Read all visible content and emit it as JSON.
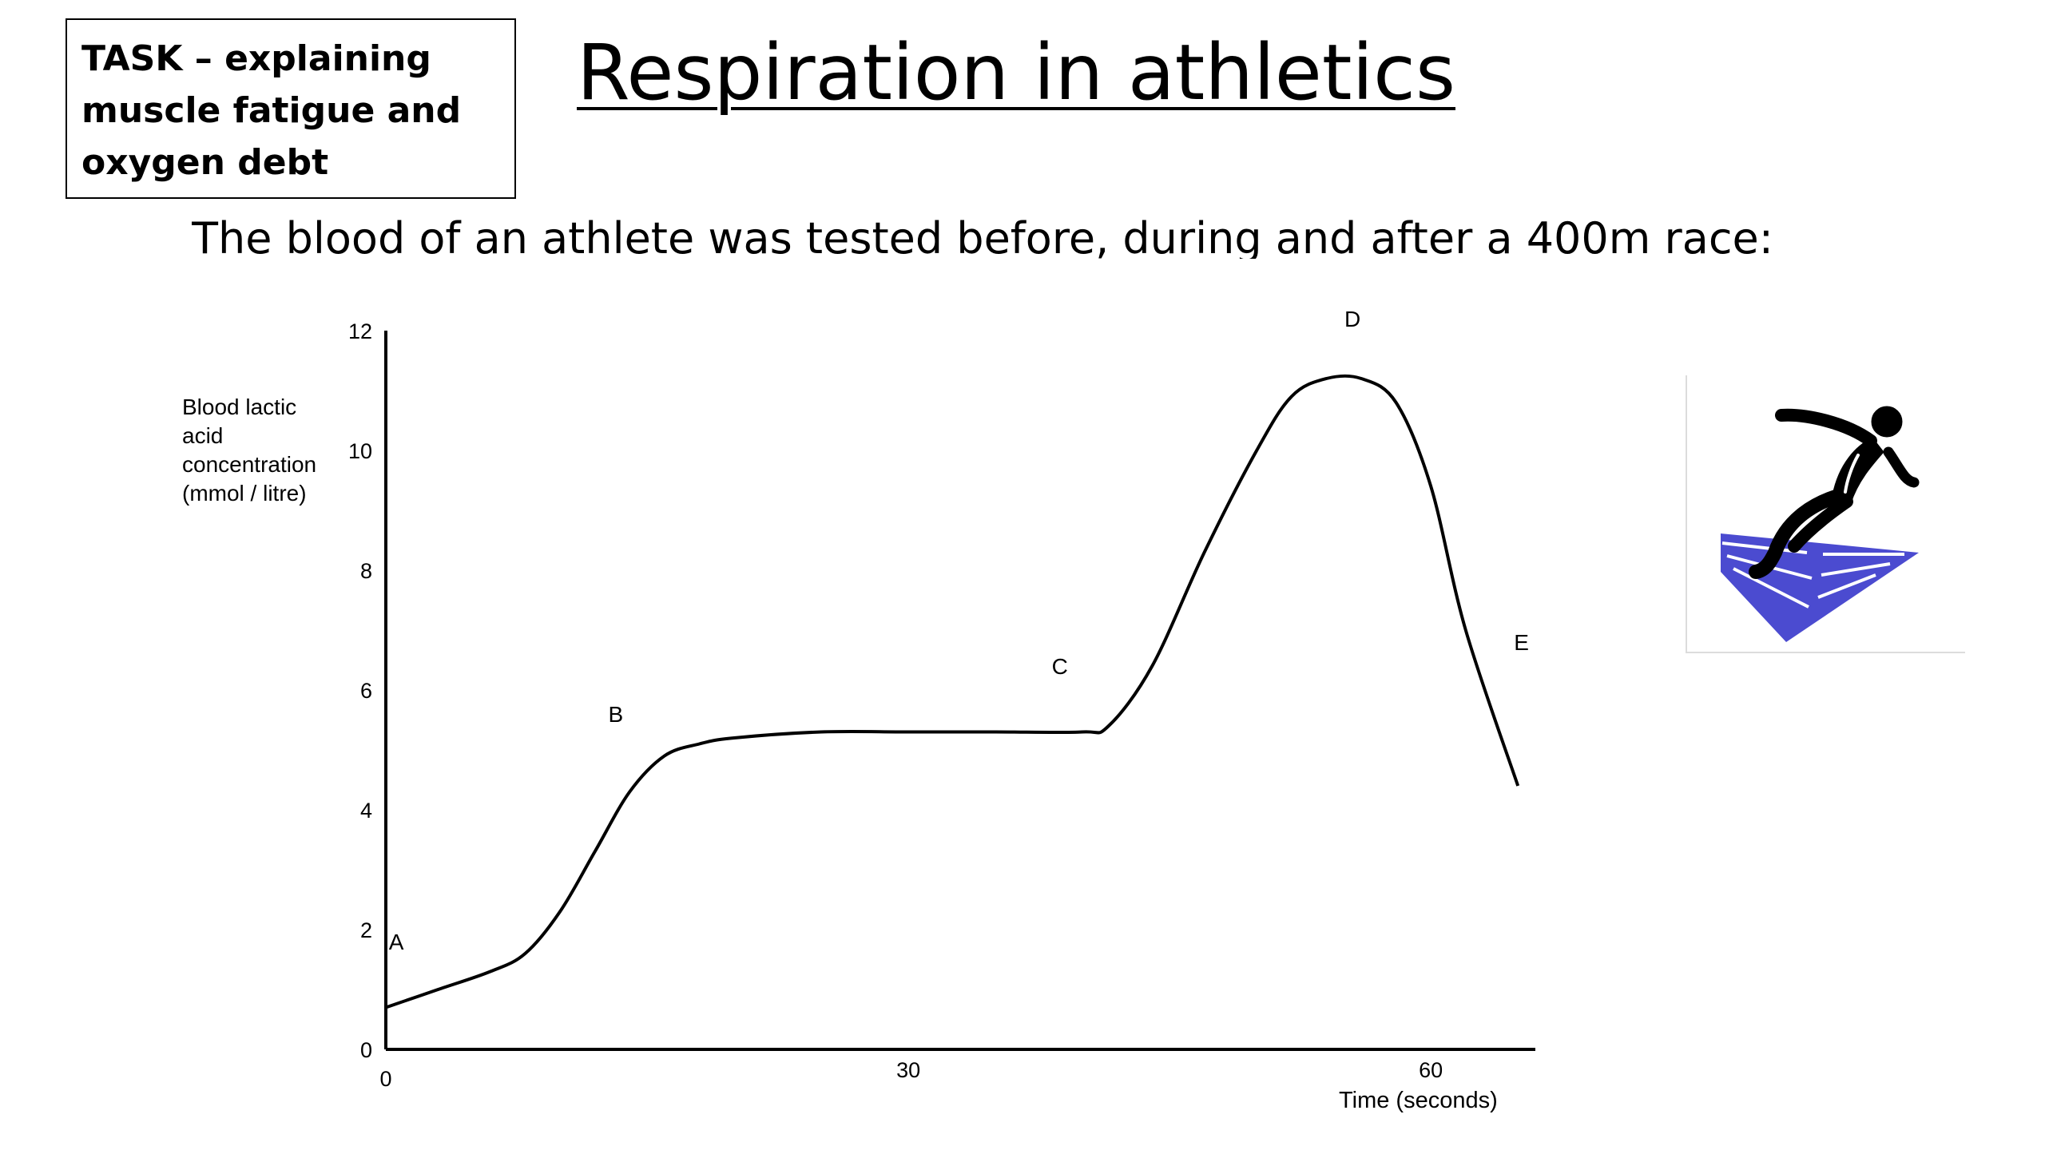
{
  "task": {
    "lines": [
      "TASK  – explaining",
      "muscle fatigue and",
      "oxygen debt"
    ]
  },
  "title": "Respiration in athletics",
  "subtitle": "The blood of an athlete was tested before, during and after a 400m race:",
  "image": {
    "icon": "sprinter-on-track-icon",
    "track_color": "#4b4bd0",
    "figure_color": "#000000"
  },
  "chart_data": {
    "type": "line",
    "xlabel": "Time (seconds)",
    "ylabel_lines": [
      "Blood lactic",
      "acid",
      "concentration",
      "(mmol / litre)"
    ],
    "xlim": [
      0,
      66
    ],
    "ylim": [
      0,
      12
    ],
    "x_ticks": [
      "0",
      "30",
      "60"
    ],
    "y_ticks": [
      "0",
      "2",
      "4",
      "6",
      "8",
      "10",
      "12"
    ],
    "grid": false,
    "series": [
      {
        "x": [
          0,
          3,
          6,
          8,
          10,
          12,
          14,
          16,
          18,
          20,
          25,
          30,
          35,
          40,
          41.5,
          44,
          47,
          50,
          52,
          54,
          56,
          58,
          60,
          62,
          65
        ],
        "y": [
          0.7,
          1.0,
          1.3,
          1.6,
          2.3,
          3.3,
          4.3,
          4.9,
          5.1,
          5.2,
          5.3,
          5.3,
          5.3,
          5.3,
          5.4,
          6.4,
          8.3,
          10.0,
          10.9,
          11.2,
          11.2,
          10.8,
          9.4,
          7.0,
          4.4
        ]
      }
    ],
    "annotations": [
      {
        "text": "A",
        "x": 0.6,
        "y": 1.8
      },
      {
        "text": "B",
        "x": 13.2,
        "y": 5.6
      },
      {
        "text": "C",
        "x": 38.7,
        "y": 6.4
      },
      {
        "text": "D",
        "x": 55.5,
        "y": 12.2
      },
      {
        "text": "E",
        "x": 65.2,
        "y": 6.8
      }
    ]
  }
}
